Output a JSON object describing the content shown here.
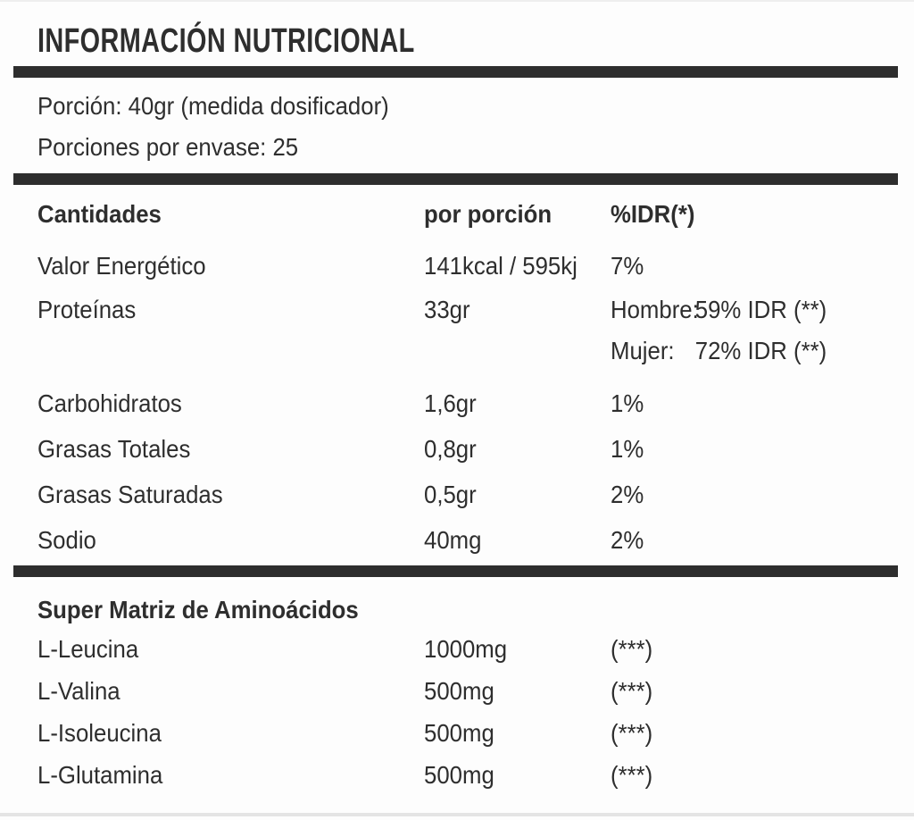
{
  "colors": {
    "ink": "#2e2e2e",
    "background": "#fdfdfd",
    "edge": "#e4e4e4"
  },
  "header": {
    "title": "INFORMACIÓN NUTRICIONAL"
  },
  "serving_info": {
    "portion": "Porción: 40gr (medida dosificador)",
    "portions_per_container": "Porciones por envase: 25"
  },
  "nutrition_table": {
    "columns": {
      "quantities": "Cantidades",
      "per_portion": "por porción",
      "idr": "%IDR(*)"
    },
    "rows": [
      {
        "name": "Valor Energético",
        "per_portion": "141kcal / 595kj",
        "idr": "7%"
      },
      {
        "name": "Proteínas",
        "per_portion": "33gr",
        "idr_hombre_label": "Hombre:",
        "idr_hombre_value": "59% IDR (**)",
        "idr_mujer_label": "Mujer:",
        "idr_mujer_value": "72% IDR (**)"
      },
      {
        "name": "Carbohidratos",
        "per_portion": "1,6gr",
        "idr": "1%"
      },
      {
        "name": "Grasas Totales",
        "per_portion": "0,8gr",
        "idr": "1%"
      },
      {
        "name": "Grasas Saturadas",
        "per_portion": "0,5gr",
        "idr": "2%"
      },
      {
        "name": "Sodio",
        "per_portion": "40mg",
        "idr": "2%"
      }
    ]
  },
  "amino_table": {
    "title": "Super Matriz de Aminoácidos",
    "rows": [
      {
        "name": "L-Leucina",
        "per_portion": "1000mg",
        "idr": "(***)"
      },
      {
        "name": "L-Valina",
        "per_portion": "500mg",
        "idr": "(***)"
      },
      {
        "name": "L-Isoleucina",
        "per_portion": "500mg",
        "idr": "(***)"
      },
      {
        "name": "L-Glutamina",
        "per_portion": "500mg",
        "idr": "(***)"
      }
    ]
  }
}
